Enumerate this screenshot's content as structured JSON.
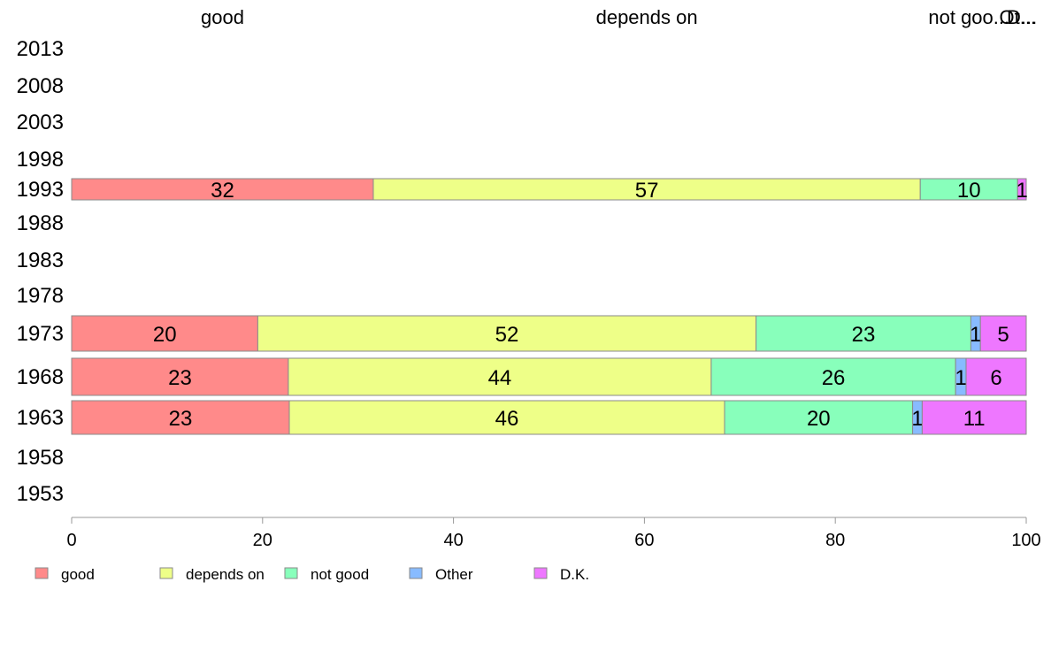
{
  "chart_data": {
    "type": "bar",
    "orientation": "horizontal",
    "stacked": true,
    "categories": [
      "good",
      "depends on",
      "not good",
      "Other",
      "D.K."
    ],
    "colors": {
      "good": "#ff8a8a",
      "depends on": "#eeff88",
      "not good": "#88ffbb",
      "Other": "#88bbff",
      "D.K.": "#ee77ff"
    },
    "top_labels": [
      "good",
      "depends on",
      "not goo...",
      "Ot...",
      "D..."
    ],
    "years": [
      "2013",
      "2008",
      "2003",
      "1998",
      "1993",
      "1988",
      "1983",
      "1978",
      "1973",
      "1968",
      "1963",
      "1958",
      "1953"
    ],
    "rows": [
      {
        "year": "1993",
        "values": [
          31.6,
          57.3,
          10.2,
          0,
          0.9
        ],
        "labels": [
          "32",
          "57",
          "10",
          "",
          "1"
        ]
      },
      {
        "year": "1973",
        "values": [
          19.5,
          52.2,
          22.5,
          1.0,
          4.8
        ],
        "labels": [
          "20",
          "52",
          "23",
          "1",
          "5"
        ]
      },
      {
        "year": "1968",
        "values": [
          22.7,
          44.3,
          25.6,
          1.1,
          6.3
        ],
        "labels": [
          "23",
          "44",
          "26",
          "1",
          "6"
        ]
      },
      {
        "year": "1963",
        "values": [
          22.8,
          45.6,
          19.7,
          1.0,
          10.9
        ],
        "labels": [
          "23",
          "46",
          "20",
          "1",
          "11"
        ]
      }
    ],
    "x_ticks": [
      "0",
      "20",
      "40",
      "60",
      "80",
      "100"
    ],
    "xlim": [
      0,
      100
    ],
    "legend": [
      "good",
      "depends on",
      "not good",
      "Other",
      "D.K."
    ],
    "legend_position": "bottom"
  }
}
